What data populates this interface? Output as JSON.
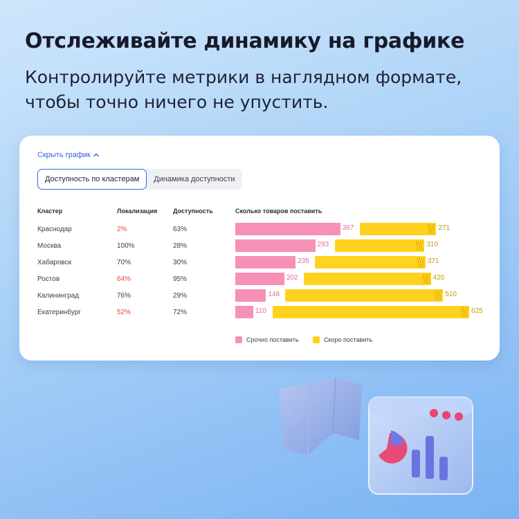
{
  "header": {
    "title": "Отслеживайте динамику на графике",
    "subtitle": "Контролируйте метрики в наглядном формате, чтобы точно ничего не упустить."
  },
  "card": {
    "hide_link": "Скрыть график",
    "tabs": [
      {
        "label": "Доступность по кластерам",
        "active": true
      },
      {
        "label": "Динамика доступности",
        "active": false
      }
    ],
    "columns": {
      "cluster": "Кластер",
      "localization": "Локализация",
      "availability": "Доступность",
      "to_supply": "Сколько товаров поставить"
    },
    "rows": [
      {
        "cluster": "Краснодар",
        "localization": "2%",
        "loc_low": true,
        "availability": "63%",
        "urgent": 367,
        "soon": 271
      },
      {
        "cluster": "Москва",
        "localization": "100%",
        "loc_low": false,
        "availability": "28%",
        "urgent": 293,
        "soon": 310
      },
      {
        "cluster": "Хабаровск",
        "localization": "70%",
        "loc_low": false,
        "availability": "30%",
        "urgent": 235,
        "soon": 371
      },
      {
        "cluster": "Ростов",
        "localization": "64%",
        "loc_low": true,
        "availability": "95%",
        "urgent": 202,
        "soon": 420
      },
      {
        "cluster": "Калининград",
        "localization": "76%",
        "loc_low": false,
        "availability": "29%",
        "urgent": 148,
        "soon": 510
      },
      {
        "cluster": "Екатеринбург",
        "localization": "52%",
        "loc_low": true,
        "availability": "72%",
        "urgent": 110,
        "soon": 625
      }
    ],
    "legend": {
      "urgent": "Срочно поставить",
      "soon": "Скоро поставить"
    }
  },
  "colors": {
    "urgent": "#f790b6",
    "soon": "#ffd21f",
    "accent": "#2f6fe0",
    "low_localization": "#e24a3b"
  },
  "illustration": {
    "icons": [
      "folded-map-icon",
      "browser-window-chart-icon"
    ]
  }
}
